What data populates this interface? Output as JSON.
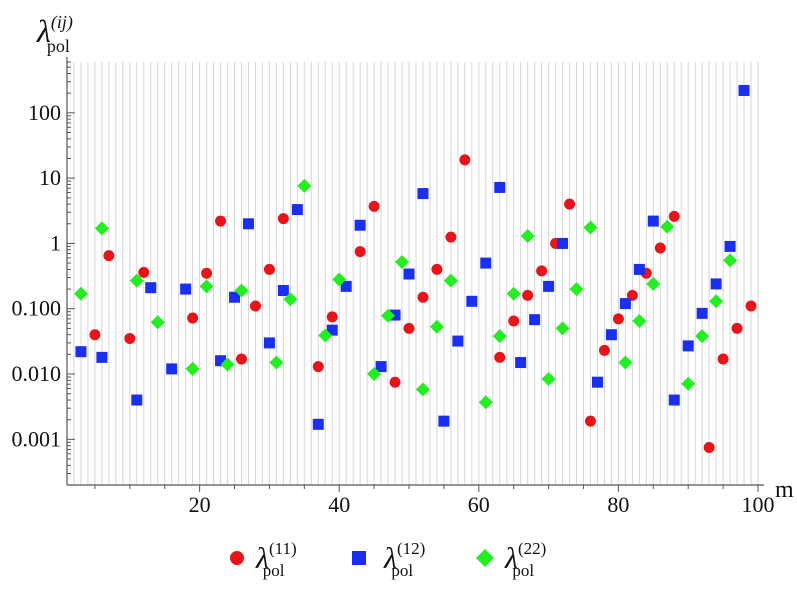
{
  "chart_data": {
    "type": "scatter",
    "ylabel": {
      "base": "λ",
      "sub": "pol",
      "sup": "(ij)"
    },
    "xlabel": "m",
    "x_scale": "linear",
    "y_scale": "log",
    "xlim": [
      1,
      100
    ],
    "ylim": [
      0.0002,
      600
    ],
    "x_ticks": [
      20,
      40,
      60,
      80,
      100
    ],
    "y_ticks": [
      0.001,
      0.01,
      0.1,
      1,
      10,
      100
    ],
    "y_tick_labels": [
      "0.001",
      "0.010",
      "0.100",
      "1",
      "10",
      "100"
    ],
    "grid": "vertical",
    "legend_position": "bottom",
    "series": [
      {
        "name": "λpol(11)",
        "label": {
          "base": "λ",
          "sub": "pol",
          "sup": "(11)"
        },
        "marker": "circle",
        "color": "#e8141a",
        "points": [
          [
            5,
            0.04
          ],
          [
            7,
            0.65
          ],
          [
            10,
            0.035
          ],
          [
            12,
            0.36
          ],
          [
            19,
            0.072
          ],
          [
            21,
            0.35
          ],
          [
            23,
            2.2
          ],
          [
            26,
            0.017
          ],
          [
            28,
            0.11
          ],
          [
            30,
            0.4
          ],
          [
            32,
            2.4
          ],
          [
            37,
            0.013
          ],
          [
            39,
            0.075
          ],
          [
            43,
            0.75
          ],
          [
            45,
            3.7
          ],
          [
            48,
            0.0075
          ],
          [
            50,
            0.05
          ],
          [
            52,
            0.15
          ],
          [
            54,
            0.4
          ],
          [
            56,
            1.25
          ],
          [
            58,
            19
          ],
          [
            63,
            0.018
          ],
          [
            65,
            0.065
          ],
          [
            67,
            0.16
          ],
          [
            69,
            0.38
          ],
          [
            71,
            1.0
          ],
          [
            73,
            4.0
          ],
          [
            76,
            0.0019
          ],
          [
            78,
            0.023
          ],
          [
            80,
            0.07
          ],
          [
            82,
            0.16
          ],
          [
            84,
            0.35
          ],
          [
            86,
            0.85
          ],
          [
            88,
            2.6
          ],
          [
            93,
            0.00075
          ],
          [
            95,
            0.017
          ],
          [
            97,
            0.05
          ],
          [
            99,
            0.11
          ]
        ]
      },
      {
        "name": "λpol(12)",
        "label": {
          "base": "λ",
          "sub": "pol",
          "sup": "(12)"
        },
        "marker": "square",
        "color": "#1a2ff0",
        "points": [
          [
            3,
            0.022
          ],
          [
            6,
            0.018
          ],
          [
            11,
            0.004
          ],
          [
            13,
            0.21
          ],
          [
            16,
            0.012
          ],
          [
            18,
            0.2
          ],
          [
            23,
            0.016
          ],
          [
            25,
            0.15
          ],
          [
            27,
            2.0
          ],
          [
            30,
            0.03
          ],
          [
            32,
            0.19
          ],
          [
            34,
            3.3
          ],
          [
            37,
            0.0017
          ],
          [
            39,
            0.047
          ],
          [
            41,
            0.22
          ],
          [
            43,
            1.9
          ],
          [
            46,
            0.013
          ],
          [
            48,
            0.08
          ],
          [
            50,
            0.34
          ],
          [
            52,
            5.8
          ],
          [
            55,
            0.0019
          ],
          [
            57,
            0.032
          ],
          [
            59,
            0.13
          ],
          [
            61,
            0.5
          ],
          [
            63,
            7.2
          ],
          [
            66,
            0.015
          ],
          [
            68,
            0.068
          ],
          [
            70,
            0.22
          ],
          [
            72,
            1.0
          ],
          [
            77,
            0.0075
          ],
          [
            79,
            0.04
          ],
          [
            81,
            0.12
          ],
          [
            83,
            0.4
          ],
          [
            85,
            2.2
          ],
          [
            88,
            0.004
          ],
          [
            90,
            0.027
          ],
          [
            92,
            0.085
          ],
          [
            94,
            0.24
          ],
          [
            96,
            0.9
          ],
          [
            98,
            220
          ]
        ]
      },
      {
        "name": "λpol(22)",
        "label": {
          "base": "λ",
          "sub": "pol",
          "sup": "(22)"
        },
        "marker": "diamond",
        "color": "#22ee22",
        "points": [
          [
            3,
            0.17
          ],
          [
            6,
            1.7
          ],
          [
            11,
            0.27
          ],
          [
            14,
            0.062
          ],
          [
            19,
            0.012
          ],
          [
            21,
            0.22
          ],
          [
            24,
            0.014
          ],
          [
            26,
            0.19
          ],
          [
            31,
            0.015
          ],
          [
            33,
            0.14
          ],
          [
            35,
            7.6
          ],
          [
            38,
            0.039
          ],
          [
            40,
            0.28
          ],
          [
            45,
            0.01
          ],
          [
            47,
            0.078
          ],
          [
            49,
            0.52
          ],
          [
            52,
            0.0058
          ],
          [
            54,
            0.053
          ],
          [
            56,
            0.27
          ],
          [
            61,
            0.0037
          ],
          [
            63,
            0.038
          ],
          [
            65,
            0.17
          ],
          [
            67,
            1.3
          ],
          [
            70,
            0.0084
          ],
          [
            72,
            0.05
          ],
          [
            74,
            0.2
          ],
          [
            76,
            1.75
          ],
          [
            81,
            0.015
          ],
          [
            83,
            0.065
          ],
          [
            85,
            0.24
          ],
          [
            87,
            1.8
          ],
          [
            90,
            0.0071
          ],
          [
            92,
            0.038
          ],
          [
            94,
            0.13
          ],
          [
            96,
            0.55
          ]
        ]
      }
    ]
  }
}
